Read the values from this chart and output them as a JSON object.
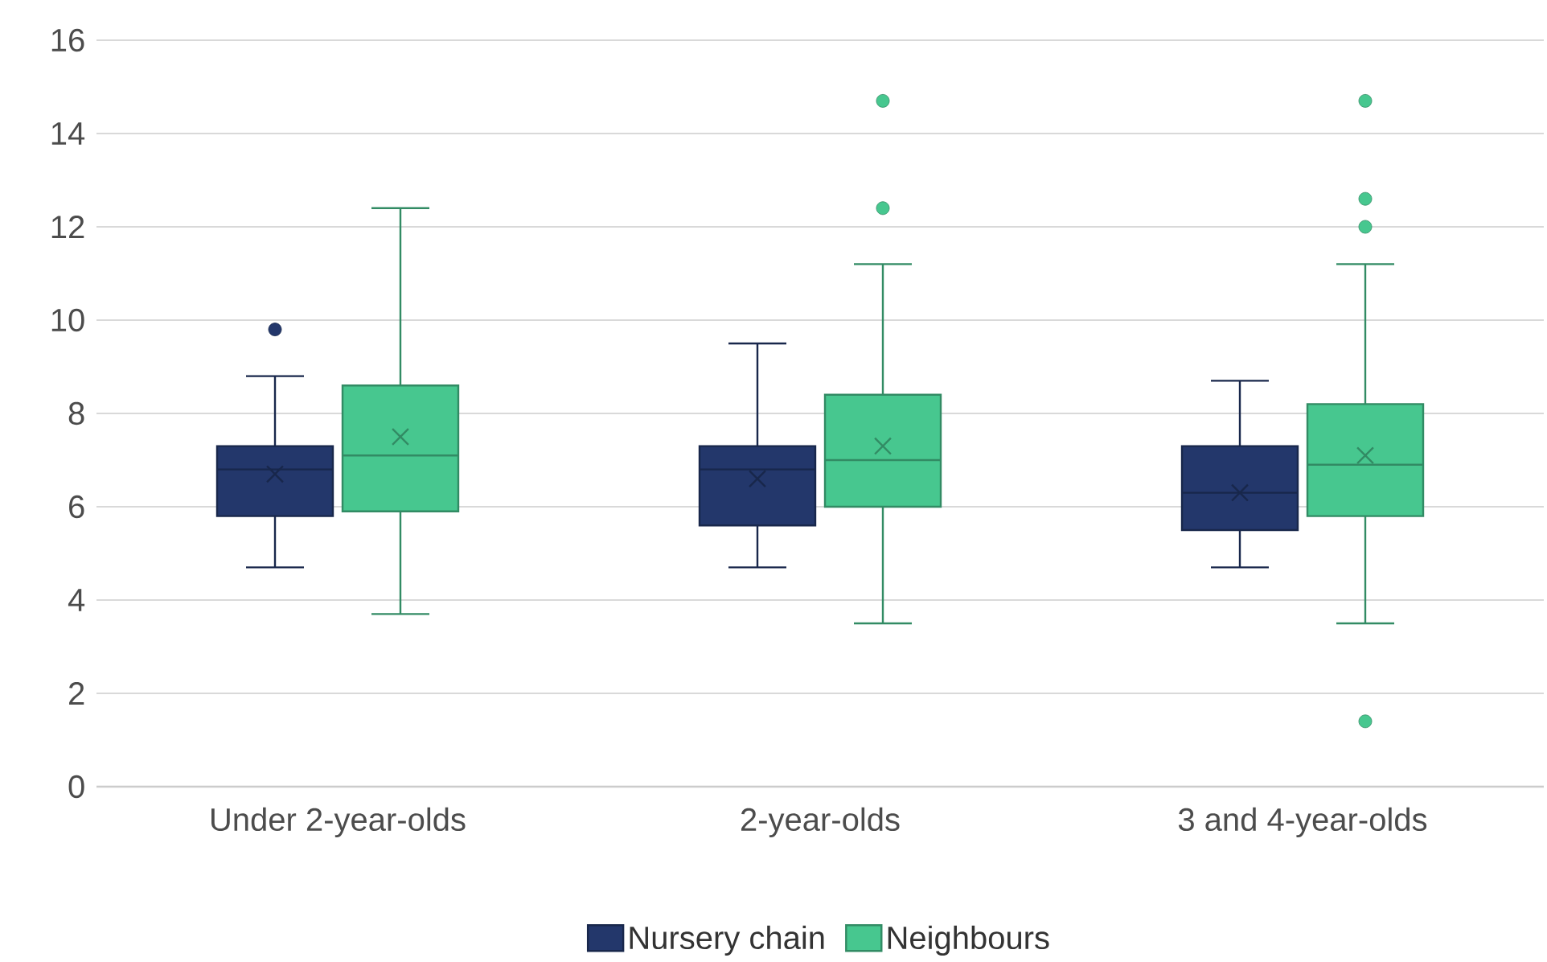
{
  "chart_data": {
    "type": "box",
    "categories": [
      "Under 2-year-olds",
      "2-year-olds",
      "3 and 4-year-olds"
    ],
    "series": [
      {
        "name": "Nursery chain",
        "color": "#23376b",
        "boxes": [
          {
            "low": 4.7,
            "q1": 5.8,
            "median": 6.8,
            "q3": 7.3,
            "high": 8.8,
            "mean": 6.7,
            "outliers": [
              9.8
            ]
          },
          {
            "low": 4.7,
            "q1": 5.6,
            "median": 6.8,
            "q3": 7.3,
            "high": 9.5,
            "mean": 6.6
          },
          {
            "low": 4.7,
            "q1": 5.5,
            "median": 6.3,
            "q3": 7.3,
            "high": 8.7,
            "mean": 6.3
          }
        ]
      },
      {
        "name": "Neighbours",
        "color": "#47c78f",
        "boxes": [
          {
            "low": 3.7,
            "q1": 5.9,
            "median": 7.1,
            "q3": 8.6,
            "high": 12.4,
            "mean": 7.5
          },
          {
            "low": 3.5,
            "q1": 6.0,
            "median": 7.0,
            "q3": 8.4,
            "high": 11.2,
            "mean": 7.3,
            "outliers": [
              14.7,
              12.4
            ]
          },
          {
            "low": 3.5,
            "q1": 5.8,
            "median": 6.9,
            "q3": 8.2,
            "high": 11.2,
            "mean": 7.1,
            "outliers": [
              14.7,
              12.6,
              12.0,
              1.4
            ]
          }
        ]
      }
    ],
    "ylim": [
      0,
      16
    ],
    "yticks": [
      0,
      2,
      4,
      6,
      8,
      10,
      12,
      14,
      16
    ],
    "grid": "y",
    "legend": "bottom"
  }
}
